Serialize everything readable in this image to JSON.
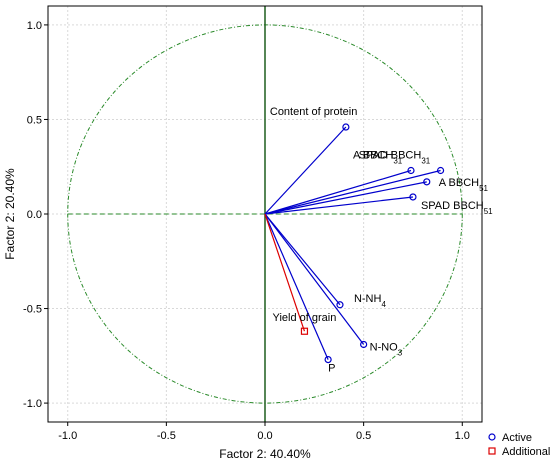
{
  "chart_data": {
    "type": "scatter",
    "subtype": "pca-correlation-circle",
    "xlabel": "Factor 2: 40.40%",
    "ylabel": "Factor 2: 20.40%",
    "xlim": [
      -1.1,
      1.1
    ],
    "ylim": [
      -1.1,
      1.1
    ],
    "x_ticks": [
      "-1.0",
      "-0.5",
      "0.0",
      "0.5",
      "1.0"
    ],
    "y_ticks": [
      "-1.0",
      "-0.5",
      "0.0",
      "0.5",
      "1.0"
    ],
    "grid": true,
    "unit_circle": true,
    "series": [
      {
        "name": "Active",
        "color": "#0000cc",
        "marker": "circle",
        "points": [
          {
            "label": "Content of protein",
            "sub": "",
            "x": 0.41,
            "y": 0.46
          },
          {
            "label": "A BBCH",
            "sub": "31",
            "x": 0.74,
            "y": 0.23
          },
          {
            "label": "SPAD  BBCH",
            "sub": "31",
            "x": 0.89,
            "y": 0.23
          },
          {
            "label": "A BBCH",
            "sub": "51",
            "x": 0.82,
            "y": 0.17
          },
          {
            "label": "SPAD  BBCH",
            "sub": "51",
            "x": 0.75,
            "y": 0.09
          },
          {
            "label": "N-NH",
            "sub": "4",
            "x": 0.38,
            "y": -0.48
          },
          {
            "label": "N-NO",
            "sub": "3",
            "x": 0.5,
            "y": -0.69
          },
          {
            "label": "P",
            "sub": "",
            "x": 0.32,
            "y": -0.77
          }
        ]
      },
      {
        "name": "Additional",
        "color": "#dd0000",
        "marker": "square",
        "points": [
          {
            "label": "Yield of grain",
            "sub": "",
            "x": 0.2,
            "y": -0.62
          }
        ]
      }
    ],
    "legend_position": "bottom-right"
  }
}
